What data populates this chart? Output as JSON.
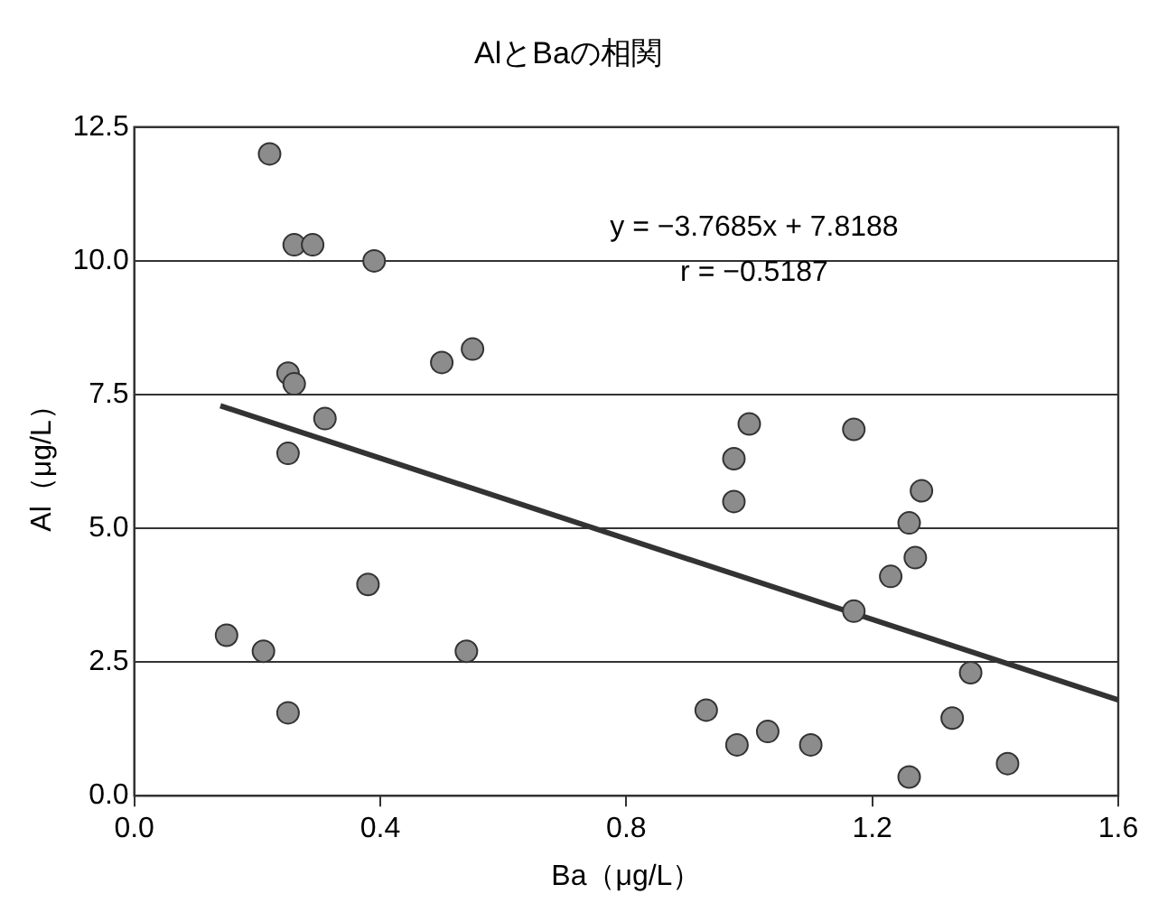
{
  "chart_data": {
    "type": "scatter",
    "title": "AlとBaの相関",
    "xlabel": "Ba（μg/L）",
    "ylabel": "Al（μg/L）",
    "annotations": [
      "y = −3.7685x + 7.8188",
      "r = −0.5187"
    ],
    "series": [
      {
        "color": "#8c8c8c",
        "marker": "circle",
        "x": [
          0.22,
          0.26,
          0.29,
          0.39,
          0.5,
          0.55,
          0.25,
          0.26,
          0.31,
          0.25,
          0.38,
          0.15,
          0.21,
          0.54,
          0.25,
          1.0,
          0.975,
          0.975,
          1.17,
          1.28,
          1.26,
          1.27,
          1.23,
          1.17,
          1.36,
          0.93,
          1.33,
          1.03,
          0.98,
          1.1,
          1.42,
          1.26
        ],
        "values": [
          12.0,
          10.3,
          10.3,
          10.0,
          8.1,
          8.35,
          7.9,
          7.7,
          7.05,
          6.4,
          3.95,
          3.0,
          2.7,
          2.7,
          1.55,
          6.95,
          6.3,
          5.5,
          6.85,
          5.7,
          5.1,
          4.45,
          4.1,
          3.45,
          2.3,
          1.6,
          1.45,
          1.2,
          0.95,
          0.95,
          0.6,
          0.35
        ]
      },
      {
        "type": "line",
        "marker": "none",
        "color": "#333333",
        "x": [
          0.14,
          1.6
        ],
        "values": [
          7.29,
          1.79
        ]
      }
    ],
    "xlim": [
      0,
      1.6
    ],
    "xticks": [
      {
        "value": 0,
        "label": "0.0"
      },
      {
        "value": 0.4,
        "label": "0.4"
      },
      {
        "value": 0.8,
        "label": "0.8"
      },
      {
        "value": 1.2,
        "label": "1.2"
      },
      {
        "value": 1.6,
        "label": "1.6"
      }
    ],
    "ylim": [
      0,
      12.5
    ],
    "yticks": [
      {
        "value": 0,
        "label": "0.0"
      },
      {
        "value": 2.5,
        "label": "2.5"
      },
      {
        "value": 5,
        "label": "5.0"
      },
      {
        "value": 7.5,
        "label": "7.5"
      },
      {
        "value": 10,
        "label": "10.0"
      },
      {
        "value": 12.5,
        "label": "12.5"
      }
    ],
    "grid": "y",
    "legend": false,
    "line_style": "solid"
  }
}
